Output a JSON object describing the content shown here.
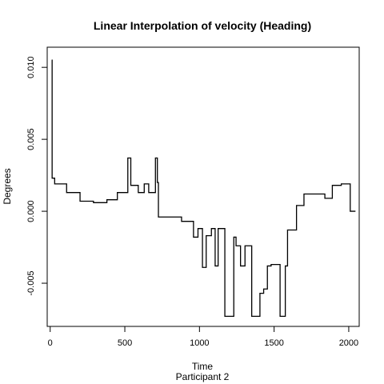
{
  "chart_data": {
    "type": "line",
    "step": true,
    "title": "Linear Interpolation of velocity (Heading)",
    "xlabel": "Time",
    "subtitle": "Participant  2",
    "ylabel": "Degrees",
    "xlim": [
      -20,
      2070
    ],
    "ylim": [
      -0.008,
      0.0114
    ],
    "x_ticks": [
      0,
      500,
      1000,
      1500,
      2000
    ],
    "x_tick_labels": [
      "0",
      "500",
      "1000",
      "1500",
      "2000"
    ],
    "y_ticks": [
      -0.005,
      0.0,
      0.005,
      0.01
    ],
    "y_tick_labels": [
      "-0.005",
      "0.000",
      "0.005",
      "0.010"
    ],
    "line_color": "#000000",
    "series": [
      {
        "x": [
          10,
          13,
          13,
          30,
          30,
          110,
          110,
          200,
          200,
          290,
          290,
          380,
          380,
          450,
          450,
          520,
          520,
          540,
          540,
          590,
          590,
          630,
          630,
          660,
          660,
          705,
          705,
          718,
          718,
          725,
          725,
          880,
          880,
          960,
          960,
          990,
          990,
          1020,
          1020,
          1045,
          1045,
          1080,
          1080,
          1105,
          1105,
          1125,
          1125,
          1170,
          1170,
          1230,
          1230,
          1245,
          1245,
          1275,
          1275,
          1305,
          1305,
          1320,
          1320,
          1350,
          1350,
          1405,
          1405,
          1430,
          1430,
          1455,
          1455,
          1480,
          1480,
          1540,
          1540,
          1575,
          1575,
          1590,
          1590,
          1650,
          1650,
          1700,
          1700,
          1840,
          1840,
          1890,
          1890,
          1950,
          1950,
          2010,
          2010,
          2045
        ],
        "y": [
          0.0105,
          0.0105,
          0.0023,
          0.0023,
          0.0019,
          0.0019,
          0.0013,
          0.0013,
          0.0007,
          0.0007,
          0.0006,
          0.0006,
          0.0008,
          0.0008,
          0.0013,
          0.0013,
          0.0037,
          0.0037,
          0.0018,
          0.0018,
          0.0013,
          0.0013,
          0.0019,
          0.0019,
          0.0013,
          0.0013,
          0.0037,
          0.0037,
          0.002,
          0.002,
          -0.0004,
          -0.0004,
          -0.0007,
          -0.0007,
          -0.0018,
          -0.0018,
          -0.0012,
          -0.0012,
          -0.0039,
          -0.0039,
          -0.0017,
          -0.0017,
          -0.0012,
          -0.0012,
          -0.0038,
          -0.0038,
          -0.0012,
          -0.0012,
          -0.0073,
          -0.0073,
          -0.0018,
          -0.0018,
          -0.0024,
          -0.0024,
          -0.0038,
          -0.0038,
          -0.0024,
          -0.0024,
          -0.0024,
          -0.0024,
          -0.0073,
          -0.0073,
          -0.0057,
          -0.0057,
          -0.0054,
          -0.0054,
          -0.0038,
          -0.0038,
          -0.0037,
          -0.0037,
          -0.0073,
          -0.0073,
          -0.0038,
          -0.0038,
          -0.0013,
          -0.0013,
          0.0004,
          0.0004,
          0.0012,
          0.0012,
          0.0009,
          0.0009,
          0.0018,
          0.0018,
          0.0019,
          0.0019,
          0.0,
          0.0
        ]
      }
    ]
  }
}
